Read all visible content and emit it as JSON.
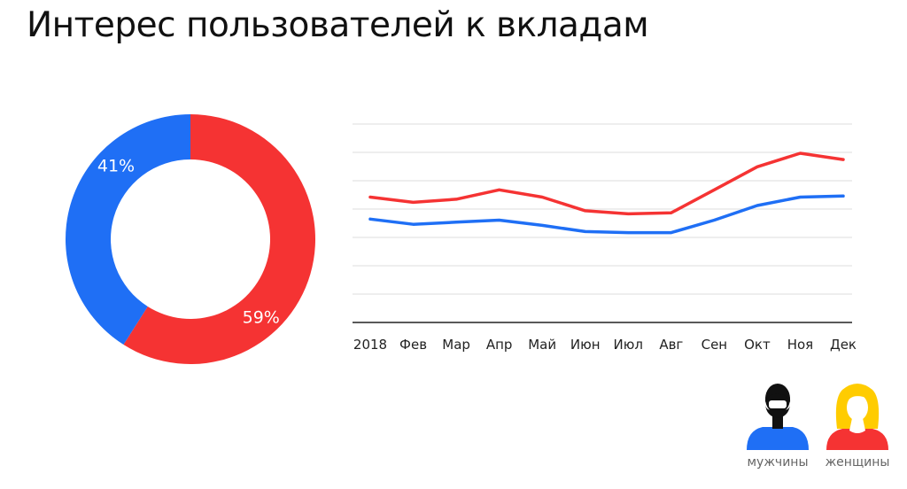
{
  "title": "Интерес пользователей к вкладам",
  "colors": {
    "men": "#1f6ff5",
    "women": "#f53333",
    "grid": "#dddddd",
    "axis": "#222222"
  },
  "chart_data": [
    {
      "type": "pie",
      "variant": "donut",
      "slices": [
        {
          "group": "women",
          "value": 59,
          "label": "59%"
        },
        {
          "group": "men",
          "value": 41,
          "label": "41%"
        }
      ]
    },
    {
      "type": "line",
      "categories": [
        "2018",
        "Фев",
        "Мар",
        "Апр",
        "Май",
        "Июн",
        "Июл",
        "Авг",
        "Сен",
        "Окт",
        "Ноя",
        "Дек"
      ],
      "series": [
        {
          "group": "women",
          "values": [
            6.0,
            5.75,
            5.9,
            6.35,
            6.0,
            5.35,
            5.2,
            5.25,
            6.35,
            7.45,
            8.1,
            7.8
          ]
        },
        {
          "group": "men",
          "values": [
            4.95,
            4.7,
            4.8,
            4.9,
            4.65,
            4.35,
            4.3,
            4.3,
            4.9,
            5.6,
            6.0,
            6.05
          ]
        }
      ],
      "ylim": [
        0,
        9.5
      ],
      "grid": true,
      "yticks_shown": false
    }
  ],
  "legend": {
    "men": {
      "label": "мужчины",
      "icon": "man-icon"
    },
    "women": {
      "label": "женщины",
      "icon": "woman-icon"
    }
  }
}
